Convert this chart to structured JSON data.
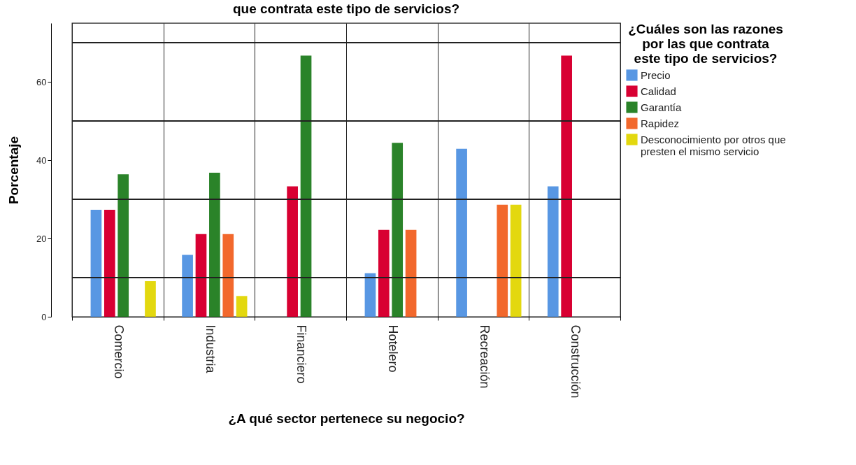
{
  "chart_data": {
    "type": "bar",
    "title": "que contrata este tipo de servicios?",
    "xlabel": "¿A qué sector pertenece su negocio?",
    "ylabel": "Porcentaje",
    "legend_title": "¿Cuáles son las razones por las que contrata este tipo de servicios?",
    "categories": [
      "Comercio",
      "Industria",
      "Financiero",
      "Hotelero",
      "Recreación",
      "Construcción"
    ],
    "series": [
      {
        "name": "Precio",
        "color": "#5897e3",
        "values": [
          27.3,
          15.8,
          0,
          11.1,
          42.9,
          33.3
        ]
      },
      {
        "name": "Calidad",
        "color": "#d80032",
        "values": [
          27.3,
          21.1,
          33.3,
          22.2,
          0,
          66.7
        ]
      },
      {
        "name": "Garantía",
        "color": "#2a8329",
        "values": [
          36.4,
          36.8,
          66.7,
          44.4,
          0,
          0
        ]
      },
      {
        "name": "Rapidez",
        "color": "#f2682c",
        "values": [
          0,
          21.1,
          0,
          22.2,
          28.6,
          0
        ]
      },
      {
        "name": "Desconocimiento por otros que presten el mismo servicio",
        "color": "#e3d80f",
        "values": [
          9.1,
          5.3,
          0,
          0,
          28.6,
          0
        ]
      }
    ],
    "ylim": [
      0,
      75
    ],
    "yticks": [
      0,
      20,
      40,
      60
    ],
    "grid": "x",
    "legend": "top right",
    "ref_lines": [
      {
        "axis": "y",
        "value": 10
      },
      {
        "axis": "y",
        "value": 30
      },
      {
        "axis": "y",
        "value": 50
      },
      {
        "axis": "y",
        "value": 70
      }
    ]
  }
}
